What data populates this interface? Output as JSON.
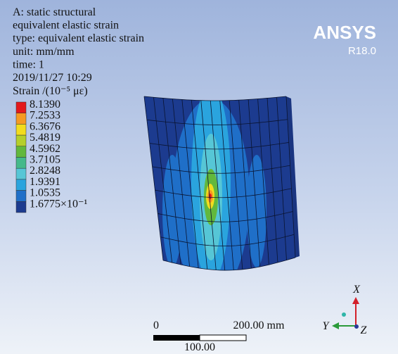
{
  "header": {
    "lines": [
      "A: static structural",
      "equivalent elastic strain",
      "type: equivalent elastic strain",
      "unit: mm/mm",
      "time: 1",
      "2019/11/27 10:29"
    ]
  },
  "legend": {
    "title": "Strain /(10⁻⁵ με)",
    "items": [
      {
        "label": "8.1390",
        "color": "#e3191c"
      },
      {
        "label": "7.2533",
        "color": "#f59a23"
      },
      {
        "label": "6.3676",
        "color": "#f2dc1e"
      },
      {
        "label": "5.4819",
        "color": "#b5cf2b"
      },
      {
        "label": "4.5962",
        "color": "#62b83c"
      },
      {
        "label": "3.7105",
        "color": "#45b98a"
      },
      {
        "label": "2.8248",
        "color": "#56c6d6"
      },
      {
        "label": "1.9391",
        "color": "#2aa4de"
      },
      {
        "label": "1.0535",
        "color": "#1f6fc8"
      },
      {
        "label": "1.6775×10⁻¹",
        "color": "#1c3b8f"
      }
    ]
  },
  "logo": {
    "name": "ANSYS",
    "version": "R18.0"
  },
  "scale_bar": {
    "start": "0",
    "end": "200.00 mm",
    "mid": "100.00"
  },
  "triad": {
    "x": "X",
    "y": "Y",
    "z": "Z"
  }
}
